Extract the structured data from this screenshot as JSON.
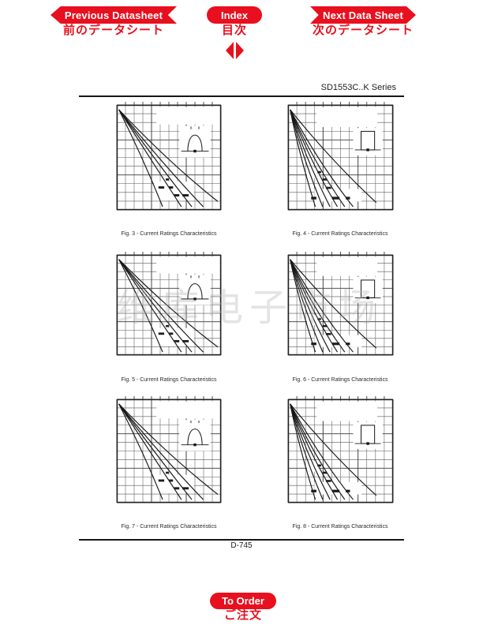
{
  "page": {
    "series_label": "SD1553C..K Series",
    "page_number": "D-745",
    "watermark": "维库电子市场"
  },
  "nav": {
    "previous": {
      "label": "Previous Datasheet",
      "sublabel": "前のデータシート"
    },
    "index": {
      "label": "Index",
      "sublabel": "目次"
    },
    "next": {
      "label": "Next Data Sheet",
      "sublabel": "次のデータシート"
    },
    "order": {
      "label": "To Order",
      "sublabel": "ご注文"
    }
  },
  "colors": {
    "accent": "#e8101e",
    "grid_minor": "#5a5a5a",
    "grid_major": "#3a3a3a",
    "border": "#222222",
    "curve": "#161616"
  },
  "figures": [
    {
      "caption": "Fig. 3 - Current Ratings Characteristics",
      "type": "halfsine",
      "inset_icon": "half-sine-pulse-icon"
    },
    {
      "caption": "Fig. 4 - Current Ratings Characteristics",
      "type": "rectpulse",
      "inset_icon": "square-pulse-icon"
    },
    {
      "caption": "Fig. 5 - Current Ratings Characteristics",
      "type": "halfsine",
      "inset_icon": "half-sine-pulse-icon"
    },
    {
      "caption": "Fig. 6 - Current Ratings Characteristics",
      "type": "rectpulse",
      "inset_icon": "square-pulse-icon"
    },
    {
      "caption": "Fig. 7 - Current Ratings Characteristics",
      "type": "halfsine",
      "inset_icon": "half-sine-pulse-icon"
    },
    {
      "caption": "Fig. 8 - Current Ratings Characteristics",
      "type": "rectpulse",
      "inset_icon": "square-pulse-icon"
    }
  ],
  "chart_styles": {
    "halfsine": {
      "grid_divisions": 12,
      "white_rects": [
        [
          0.38,
          0.02,
          0.61,
          0.165
        ],
        [
          0.36,
          0.73,
          0.38,
          0.18
        ]
      ],
      "inset_box": [
        0.6,
        0.2,
        0.3,
        0.3
      ],
      "glyph": "halfsine",
      "curves": [
        [
          0.02,
          0.045,
          0.25,
          0.5,
          0.44,
          0.97
        ],
        [
          0.02,
          0.045,
          0.33,
          0.52,
          0.62,
          0.97
        ],
        [
          0.02,
          0.045,
          0.38,
          0.54,
          0.72,
          0.97
        ],
        [
          0.02,
          0.045,
          0.43,
          0.55,
          0.83,
          0.97
        ],
        [
          0.02,
          0.045,
          0.5,
          0.55,
          0.97,
          0.92
        ]
      ],
      "smudges": [
        [
          0.4,
          0.775,
          0.055,
          0.022
        ],
        [
          0.5,
          0.775,
          0.04,
          0.022
        ],
        [
          0.55,
          0.85,
          0.05,
          0.022
        ],
        [
          0.63,
          0.85,
          0.06,
          0.022
        ],
        [
          0.47,
          0.7,
          0.03,
          0.02
        ]
      ]
    },
    "rectpulse": {
      "grid_divisions": 12,
      "white_rects": [
        [
          0.27,
          0.02,
          0.58,
          0.19
        ],
        [
          0.18,
          0.6,
          0.12,
          0.1
        ],
        [
          0.25,
          0.8,
          0.45,
          0.12
        ]
      ],
      "inset_box": [
        0.62,
        0.22,
        0.28,
        0.26
      ],
      "glyph": "rectpulse",
      "curves": [
        [
          0.02,
          0.045,
          0.1,
          0.45,
          0.26,
          0.97
        ],
        [
          0.02,
          0.045,
          0.13,
          0.48,
          0.33,
          0.97
        ],
        [
          0.02,
          0.045,
          0.16,
          0.5,
          0.4,
          0.97
        ],
        [
          0.02,
          0.045,
          0.2,
          0.52,
          0.47,
          0.97
        ],
        [
          0.02,
          0.045,
          0.24,
          0.54,
          0.54,
          0.97
        ],
        [
          0.02,
          0.045,
          0.29,
          0.55,
          0.62,
          0.97
        ],
        [
          0.02,
          0.045,
          0.4,
          0.52,
          0.84,
          0.93
        ]
      ],
      "smudges": [
        [
          0.28,
          0.63,
          0.035,
          0.02
        ],
        [
          0.33,
          0.7,
          0.04,
          0.02
        ],
        [
          0.36,
          0.78,
          0.05,
          0.02
        ],
        [
          0.22,
          0.875,
          0.05,
          0.025
        ],
        [
          0.42,
          0.875,
          0.07,
          0.025
        ],
        [
          0.55,
          0.875,
          0.04,
          0.025
        ]
      ]
    }
  }
}
